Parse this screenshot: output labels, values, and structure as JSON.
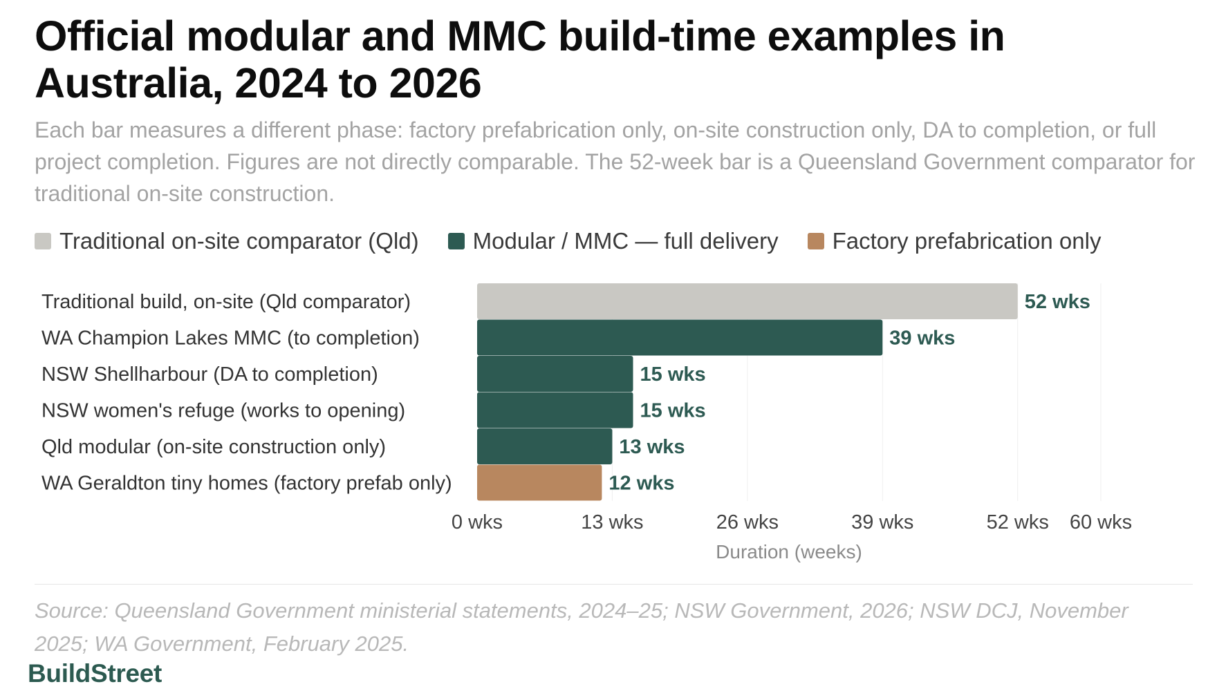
{
  "header": {
    "title": "Official modular and MMC build-time examples in Australia, 2024 to 2026",
    "subtitle": "Each bar measures a different phase: factory prefabrication only, on-site construction only, DA to completion, or full project completion. Figures are not directly comparable. The 52-week bar is a Queensland Government comparator for traditional on-site construction."
  },
  "legend": [
    {
      "label": "Traditional on-site comparator (Qld)",
      "color": "#c9c8c3"
    },
    {
      "label": "Modular / MMC — full delivery",
      "color": "#2d5a52"
    },
    {
      "label": "Factory prefabrication only",
      "color": "#b8875f"
    }
  ],
  "chart_data": {
    "type": "bar",
    "orientation": "horizontal",
    "categories": [
      "Traditional build, on-site (Qld comparator)",
      "WA Champion Lakes MMC (to completion)",
      "NSW Shellharbour (DA to completion)",
      "NSW women's refuge (works to opening)",
      "Qld modular (on-site construction only)",
      "WA Geraldton tiny homes (factory prefab only)"
    ],
    "values": [
      52,
      39,
      15,
      15,
      13,
      12
    ],
    "value_labels": [
      "52 wks",
      "39 wks",
      "15 wks",
      "15 wks",
      "13 wks",
      "12 wks"
    ],
    "bar_groups": [
      "Traditional on-site comparator (Qld)",
      "Modular / MMC — full delivery",
      "Modular / MMC — full delivery",
      "Modular / MMC — full delivery",
      "Modular / MMC — full delivery",
      "Factory prefabrication only"
    ],
    "bar_colors": [
      "#c9c8c3",
      "#2d5a52",
      "#2d5a52",
      "#2d5a52",
      "#2d5a52",
      "#b8875f"
    ],
    "label_colors": [
      "#2d5a52",
      "#2d5a52",
      "#2d5a52",
      "#2d5a52",
      "#2d5a52",
      "#2d5a52"
    ],
    "xlim": [
      0,
      60
    ],
    "xticks": [
      0,
      13,
      26,
      39,
      52,
      60
    ],
    "xtick_labels": [
      "0 wks",
      "13 wks",
      "26 wks",
      "39 wks",
      "52 wks",
      "60 wks"
    ],
    "xlabel": "Duration (weeks)",
    "ylabel": "",
    "grid": true,
    "legend_position": "top-left"
  },
  "footer": {
    "source": "Source: Queensland Government ministerial statements, 2024–25; NSW Government, 2026; NSW DCJ, November 2025; WA Government, February 2025.",
    "brand": "BuildStreet"
  }
}
